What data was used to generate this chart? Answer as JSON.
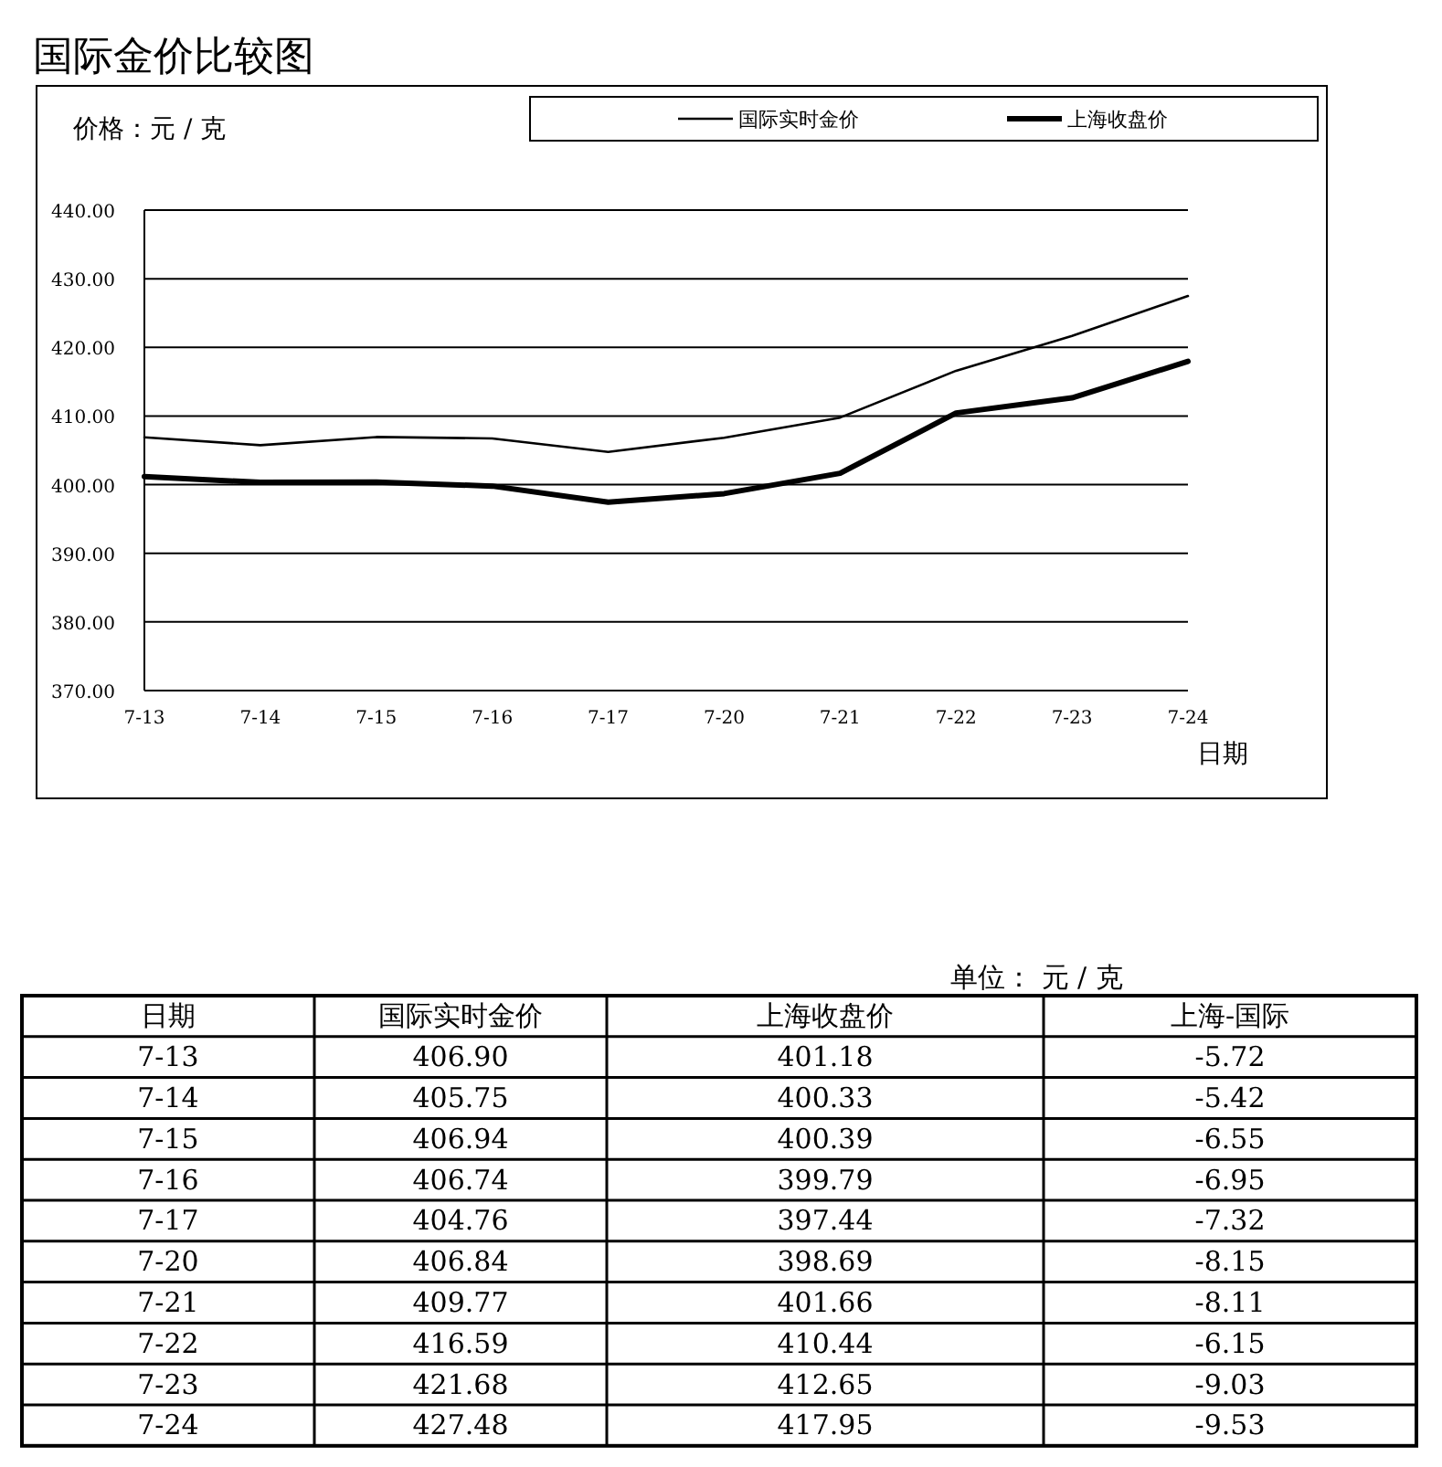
{
  "chart_data": [
    {
      "type": "line",
      "title": "国际金价比较图",
      "ylabel": "价格：元 / 克",
      "xlabel": "日期",
      "categories": [
        "7-13",
        "7-14",
        "7-15",
        "7-16",
        "7-17",
        "7-20",
        "7-21",
        "7-22",
        "7-23",
        "7-24"
      ],
      "series": [
        {
          "name": "国际实时金价",
          "color": "#000000",
          "values": [
            406.9,
            405.75,
            406.94,
            406.74,
            404.76,
            406.84,
            409.77,
            416.59,
            421.68,
            427.48
          ]
        },
        {
          "name": "上海收盘价",
          "color": "#000000",
          "values": [
            401.18,
            400.33,
            400.39,
            399.79,
            397.44,
            398.69,
            401.66,
            410.44,
            412.65,
            417.95
          ]
        }
      ],
      "ylim": [
        370,
        440
      ],
      "yticks": [
        {
          "value": 370,
          "label": "370.00"
        },
        {
          "value": 380,
          "label": "380.00"
        },
        {
          "value": 390,
          "label": "390.00"
        },
        {
          "value": 400,
          "label": "400.00"
        },
        {
          "value": 410,
          "label": "410.00"
        },
        {
          "value": 420,
          "label": "420.00"
        },
        {
          "value": 430,
          "label": "430.00"
        },
        {
          "value": 440,
          "label": "440.00"
        }
      ],
      "grid": "y",
      "legend": "top",
      "marker": "none",
      "line_style": "solid"
    },
    {
      "type": "other",
      "xlabel": "日期",
      "annotations": [
        "单位：  元 / 克"
      ],
      "categories": [
        "7-13",
        "7-14",
        "7-15",
        "7-16",
        "7-17",
        "7-20",
        "7-21",
        "7-22",
        "7-23",
        "7-24"
      ],
      "series": [
        {
          "name": "国际实时金价",
          "values": [
            406.9,
            405.75,
            406.94,
            406.74,
            404.76,
            406.84,
            409.77,
            416.59,
            421.68,
            427.48
          ],
          "value_labels": [
            "406.90",
            "405.75",
            "406.94",
            "406.74",
            "404.76",
            "406.84",
            "409.77",
            "416.59",
            "421.68",
            "427.48"
          ]
        },
        {
          "name": "上海收盘价",
          "values": [
            401.18,
            400.33,
            400.39,
            399.79,
            397.44,
            398.69,
            401.66,
            410.44,
            412.65,
            417.95
          ],
          "value_labels": [
            "401.18",
            "400.33",
            "400.39",
            "399.79",
            "397.44",
            "398.69",
            "401.66",
            "410.44",
            "412.65",
            "417.95"
          ]
        },
        {
          "name": "上海-国际",
          "values": [
            -5.72,
            -5.42,
            -6.55,
            -6.95,
            -7.32,
            -8.15,
            -8.11,
            -6.15,
            -9.03,
            -9.53
          ],
          "value_labels": [
            "-5.72",
            "-5.42",
            "-6.55",
            "-6.95",
            "-7.32",
            "-8.15",
            "-8.11",
            "-6.15",
            "-9.03",
            "-9.53"
          ]
        }
      ]
    }
  ]
}
